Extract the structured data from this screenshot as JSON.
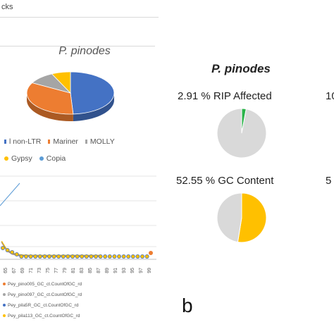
{
  "left_panel": {
    "top_label": "cks",
    "pie_title": "P. pinodes",
    "legend_row1": [
      {
        "label": "l non-LTR",
        "color": "#4472c4"
      },
      {
        "label": "Mariner",
        "color": "#ed7d31"
      },
      {
        "label": "MOLLY",
        "color": "#a5a5a5"
      }
    ],
    "legend_row2": [
      {
        "label": "Gypsy",
        "color": "#ffc000"
      },
      {
        "label": "Copia",
        "color": "#5b9bd5"
      }
    ],
    "x_ticks": [
      "65",
      "67",
      "69",
      "71",
      "73",
      "75",
      "77",
      "79",
      "81",
      "83",
      "85",
      "87",
      "89",
      "91",
      "93",
      "95",
      "97",
      "99"
    ],
    "series_legend": [
      {
        "label": "Pey_pino005_GC_ct.CountOfGC_rd",
        "color": "#ed7d31"
      },
      {
        "label": "Pey_pino097_GC_ct.CountOfGC_rd",
        "color": "#a5a5a5"
      },
      {
        "label": "Pey_pila5R_GC_ct.CountOfGC_rd",
        "color": "#4472c4"
      },
      {
        "label": "Pey_pila113_GC_ct.CountOfGC_rd",
        "color": "#ffc000"
      }
    ]
  },
  "right_panel": {
    "title": "P. pinodes",
    "rip_label": "2.91 % RIP Affected",
    "gc_label": "52.55 % GC Content",
    "edge_top": "10",
    "edge_bottom": "5",
    "panel_letter": "b"
  },
  "colors": {
    "rip_affected": "#2bb34a",
    "gc_content": "#ffc000",
    "remainder": "#d9d9d9"
  },
  "chart_data": [
    {
      "type": "pie",
      "title": "P. pinodes",
      "labels": [
        "l non-LTR",
        "Mariner",
        "MOLLY",
        "Gypsy",
        "Copia"
      ],
      "values": [
        49,
        34,
        10,
        7,
        0
      ],
      "colors": [
        "#4472c4",
        "#ed7d31",
        "#a5a5a5",
        "#ffc000",
        "#5b9bd5"
      ]
    },
    {
      "type": "pie",
      "title": "2.91 % RIP Affected",
      "labels": [
        "RIP Affected",
        "Other"
      ],
      "values": [
        2.91,
        97.09
      ],
      "colors": [
        "#2bb34a",
        "#d9d9d9"
      ]
    },
    {
      "type": "pie",
      "title": "52.55 % GC Content",
      "labels": [
        "GC Content",
        "Other"
      ],
      "values": [
        52.55,
        47.45
      ],
      "colors": [
        "#ffc000",
        "#d9d9d9"
      ]
    }
  ]
}
